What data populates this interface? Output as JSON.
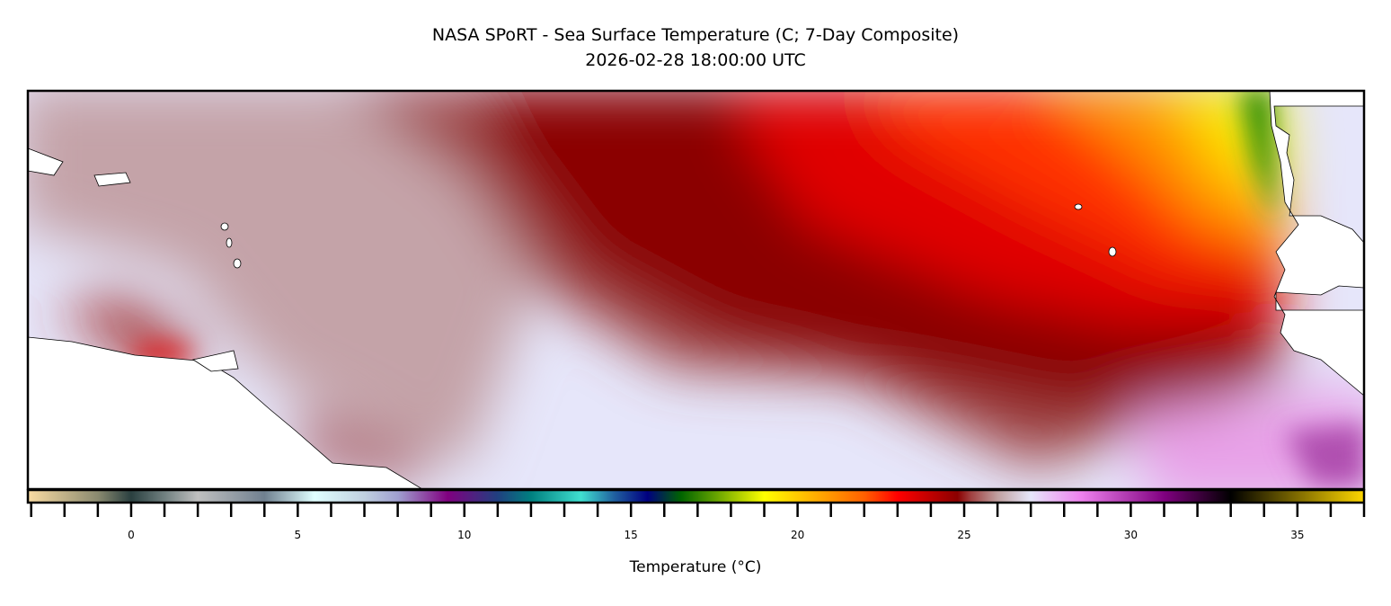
{
  "title": "NASA SPoRT - Sea Surface Temperature (C; 7-Day Composite)",
  "subtitle": "2026-02-28 18:00:00 UTC",
  "colorbar": {
    "label": "Temperature (°C)",
    "range": [
      -3.1,
      37
    ],
    "minor_tick_step": 1,
    "tick_labels": [
      "0",
      "5",
      "10",
      "15",
      "20",
      "25",
      "30",
      "35"
    ],
    "tick_values": [
      0,
      5,
      10,
      15,
      20,
      25,
      30,
      35
    ],
    "stops": [
      [
        -3,
        "#f5d8a0"
      ],
      [
        -1,
        "#8a8a70"
      ],
      [
        0,
        "#2a4040"
      ],
      [
        1,
        "#708080"
      ],
      [
        2,
        "#c0c0c0"
      ],
      [
        4,
        "#708090"
      ],
      [
        5.5,
        "#e0ffff"
      ],
      [
        7,
        "#c0d0e0"
      ],
      [
        8,
        "#a0a0d0"
      ],
      [
        9.5,
        "#800080"
      ],
      [
        11,
        "#204080"
      ],
      [
        12,
        "#008080"
      ],
      [
        13.5,
        "#40e0d0"
      ],
      [
        14.5,
        "#2060a0"
      ],
      [
        15.5,
        "#000080"
      ],
      [
        16.5,
        "#006400"
      ],
      [
        17.5,
        "#60a000"
      ],
      [
        19,
        "#ffff00"
      ],
      [
        20.5,
        "#ffb000"
      ],
      [
        22,
        "#ff6000"
      ],
      [
        23,
        "#ff0000"
      ],
      [
        24.8,
        "#8b0000"
      ],
      [
        25.2,
        "#a04040"
      ],
      [
        26,
        "#c0a0a0"
      ],
      [
        27,
        "#e6e6fa"
      ],
      [
        28.5,
        "#ee82ee"
      ],
      [
        31,
        "#800080"
      ],
      [
        33,
        "#000000"
      ],
      [
        37,
        "#ffd700"
      ]
    ]
  },
  "map": {
    "region": "Tropical Atlantic",
    "land_color": "#ffffff",
    "coastline_color": "#000000"
  }
}
